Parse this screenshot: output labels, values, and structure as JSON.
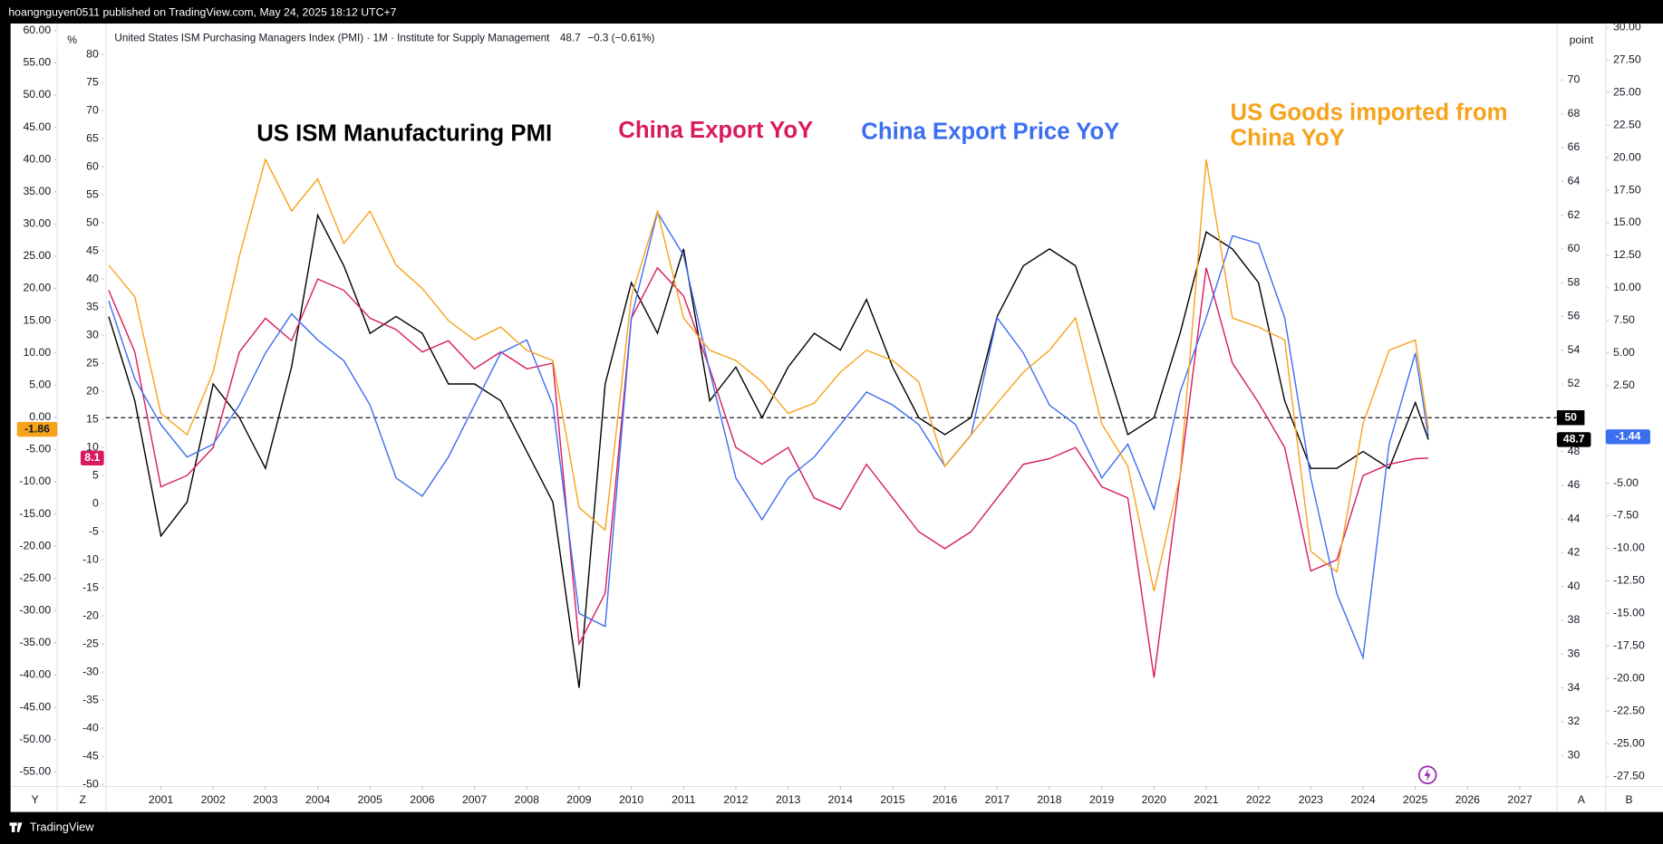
{
  "header": "hoangnguyen0511 published on TradingView.com, May 24, 2025 18:12 UTC+7",
  "footer": {
    "brand": "TradingView",
    "buttons": [
      "Y",
      "Z",
      "A",
      "B"
    ]
  },
  "chart_data": {
    "type": "line",
    "legend": {
      "title": "United States ISM Purchasing Managers Index (PMI) · 1M · Institute for Supply Management",
      "last": "48.7",
      "change": "−0.3 (−0.61%)"
    },
    "x": [
      2000,
      2000.5,
      2001,
      2001.5,
      2002,
      2002.5,
      2003,
      2003.5,
      2004,
      2004.5,
      2005,
      2005.5,
      2006,
      2006.5,
      2007,
      2007.5,
      2008,
      2008.5,
      2009,
      2009.5,
      2010,
      2010.5,
      2011,
      2011.5,
      2012,
      2012.5,
      2013,
      2013.5,
      2014,
      2014.5,
      2015,
      2015.5,
      2016,
      2016.5,
      2017,
      2017.5,
      2018,
      2018.5,
      2019,
      2019.5,
      2020,
      2020.5,
      2021,
      2021.5,
      2022,
      2022.5,
      2023,
      2023.5,
      2024,
      2024.5,
      2025,
      2025.25
    ],
    "xlim": [
      1999.95,
      2027.71
    ],
    "xticks": [
      2001,
      2002,
      2003,
      2004,
      2005,
      2006,
      2007,
      2008,
      2009,
      2010,
      2011,
      2012,
      2013,
      2014,
      2015,
      2016,
      2017,
      2018,
      2019,
      2020,
      2021,
      2022,
      2023,
      2024,
      2025,
      2026,
      2027
    ],
    "axes": [
      {
        "side": "left",
        "lim": [
          -57.3,
          61.1
        ],
        "ticks": [
          {
            "value": 60,
            "label": "60.00"
          },
          {
            "value": 55,
            "label": "55.00"
          },
          {
            "value": 50,
            "label": "50.00"
          },
          {
            "value": 45,
            "label": "45.00"
          },
          {
            "value": 40,
            "label": "40.00"
          },
          {
            "value": 35,
            "label": "35.00"
          },
          {
            "value": 30,
            "label": "30.00"
          },
          {
            "value": 25,
            "label": "25.00"
          },
          {
            "value": 20,
            "label": "20.00"
          },
          {
            "value": 15,
            "label": "15.00"
          },
          {
            "value": 10,
            "label": "10.00"
          },
          {
            "value": 5,
            "label": "5.00"
          },
          {
            "value": 0,
            "label": "0.00"
          },
          {
            "value": -5,
            "label": "-5.00"
          },
          {
            "value": -10,
            "label": "-10.00"
          },
          {
            "value": -15,
            "label": "-15.00"
          },
          {
            "value": -20,
            "label": "-20.00"
          },
          {
            "value": -25,
            "label": "-25.00"
          },
          {
            "value": -30,
            "label": "-30.00"
          },
          {
            "value": -35,
            "label": "-35.00"
          },
          {
            "value": -40,
            "label": "-40.00"
          },
          {
            "value": -45,
            "label": "-45.00"
          },
          {
            "value": -50,
            "label": "-50.00"
          },
          {
            "value": -55,
            "label": "-55.00"
          }
        ]
      },
      {
        "side": "left",
        "unit": "%",
        "lim": [
          -50.4,
          85.5
        ],
        "ticks": [
          80,
          75,
          70,
          65,
          60,
          55,
          50,
          45,
          40,
          35,
          30,
          25,
          20,
          15,
          10,
          5,
          0,
          -5,
          -10,
          -15,
          -20,
          -25,
          -30,
          -35,
          -40,
          -45,
          -50
        ]
      },
      {
        "side": "right",
        "unit": "point",
        "lim": [
          28.15,
          73.35
        ],
        "ticks": [
          70,
          68,
          66,
          64,
          62,
          60,
          58,
          56,
          54,
          52,
          48,
          46,
          44,
          42,
          40,
          38,
          36,
          34,
          32,
          30
        ]
      },
      {
        "side": "right",
        "lim": [
          -28.3,
          30.3
        ],
        "ticks": [
          {
            "value": 30,
            "label": "30.00"
          },
          {
            "value": 27.5,
            "label": "27.50"
          },
          {
            "value": 25,
            "label": "25.00"
          },
          {
            "value": 22.5,
            "label": "22.50"
          },
          {
            "value": 20,
            "label": "20.00"
          },
          {
            "value": 17.5,
            "label": "17.50"
          },
          {
            "value": 15,
            "label": "15.00"
          },
          {
            "value": 12.5,
            "label": "12.50"
          },
          {
            "value": 10,
            "label": "10.00"
          },
          {
            "value": 7.5,
            "label": "7.50"
          },
          {
            "value": 5,
            "label": "5.00"
          },
          {
            "value": 2.5,
            "label": "2.50"
          },
          {
            "value": -5,
            "label": "-5.00"
          },
          {
            "value": -7.5,
            "label": "-7.50"
          },
          {
            "value": -10,
            "label": "-10.00"
          },
          {
            "value": -12.5,
            "label": "-12.50"
          },
          {
            "value": -15,
            "label": "-15.00"
          },
          {
            "value": -17.5,
            "label": "-17.50"
          },
          {
            "value": -20,
            "label": "-20.00"
          },
          {
            "value": -22.5,
            "label": "-22.50"
          },
          {
            "value": -25,
            "label": "-25.00"
          },
          {
            "value": -27.5,
            "label": "-27.50"
          }
        ]
      }
    ],
    "hline": {
      "value": 50,
      "axis": 2
    },
    "series": [
      {
        "name": "US ISM Manufacturing PMI",
        "color": "#000000",
        "axis": 2,
        "values": [
          56,
          51,
          43,
          45,
          52,
          50,
          47,
          53,
          62,
          59,
          55,
          56,
          55,
          52,
          52,
          51,
          48,
          45,
          34,
          52,
          58,
          55,
          60,
          51,
          53,
          50,
          53,
          55,
          54,
          57,
          53,
          50,
          49,
          50,
          56,
          59,
          60,
          59,
          54,
          49,
          50,
          55,
          61,
          60,
          58,
          51,
          47,
          47,
          48,
          47,
          50.9,
          48.7
        ]
      },
      {
        "name": "China Export YoY",
        "color": "#d81b60",
        "axis": 1,
        "values": [
          38,
          27,
          3,
          5,
          10,
          27,
          33,
          29,
          40,
          38,
          33,
          31,
          27,
          29,
          24,
          27,
          24,
          25,
          -25,
          -16,
          33,
          42,
          37,
          24,
          10,
          7,
          10,
          1,
          -1,
          7,
          1,
          -5,
          -8,
          -5,
          1,
          7,
          8,
          10,
          3,
          1,
          -31,
          5,
          42,
          25,
          18,
          10,
          -12,
          -10,
          5,
          7,
          8,
          8.1
        ]
      },
      {
        "name": "China Export Price YoY",
        "color": "#3c6ef0",
        "axis": 3,
        "values": [
          9,
          3,
          -0.5,
          -3,
          -2,
          1,
          5,
          8,
          6,
          4.4,
          1,
          -4.6,
          -6,
          -3,
          1,
          5,
          6,
          1,
          -15,
          -16,
          7.7,
          15.8,
          12.5,
          3.6,
          -4.6,
          -7.8,
          -4.6,
          -3,
          -0.5,
          2,
          1,
          -0.5,
          -3.7,
          -1.3,
          7.7,
          5,
          1,
          -0.5,
          -4.6,
          -2,
          -7,
          2,
          7.7,
          14,
          13.4,
          7.7,
          -4.6,
          -13.5,
          -18.4,
          -2,
          5,
          -1.44
        ]
      },
      {
        "name": "US Goods imported from China YoY",
        "color": "#f7a21b",
        "axis": 0,
        "values": [
          23.6,
          18.7,
          0.6,
          -2.7,
          7,
          25,
          40,
          32,
          37,
          27,
          32,
          23.6,
          20,
          15,
          12,
          14,
          10.4,
          8.8,
          -14,
          -17.5,
          18.7,
          32,
          15.4,
          10.4,
          8.8,
          5.5,
          0.6,
          2.2,
          7,
          10.4,
          8.8,
          5.5,
          -7.6,
          -2.7,
          2.2,
          7,
          10.4,
          15.4,
          -1,
          -7.6,
          -27,
          -9,
          40,
          15.4,
          14,
          12,
          -20.8,
          -24,
          -1,
          10.4,
          12,
          -1.86
        ]
      }
    ]
  }
}
